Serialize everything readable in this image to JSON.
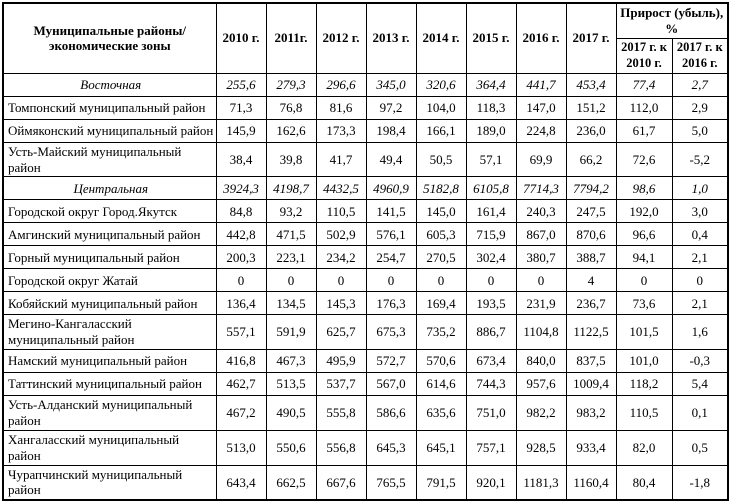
{
  "table": {
    "corner_header": "Муниципальные районы/\nэкономические зоны",
    "year_headers": [
      "2010 г.",
      "2011г.",
      "2012 г.",
      "2013 г.",
      "2014 г.",
      "2015 г.",
      "2016 г.",
      "2017 г."
    ],
    "growth_header": "Прирост (убыль),\n%",
    "growth_subheaders": [
      "2017 г. к\n2010 г.",
      "2017 г. к\n2016 г."
    ],
    "rows": [
      {
        "name": "Восточная",
        "type": "zone",
        "values": [
          "255,6",
          "279,3",
          "296,6",
          "345,0",
          "320,6",
          "364,4",
          "441,7",
          "453,4",
          "77,4",
          "2,7"
        ]
      },
      {
        "name": "Томпонский муниципальный район",
        "type": "district",
        "values": [
          "71,3",
          "76,8",
          "81,6",
          "97,2",
          "104,0",
          "118,3",
          "147,0",
          "151,2",
          "112,0",
          "2,9"
        ]
      },
      {
        "name": "Оймяконский муниципальный район",
        "type": "district",
        "values": [
          "145,9",
          "162,6",
          "173,3",
          "198,4",
          "166,1",
          "189,0",
          "224,8",
          "236,0",
          "61,7",
          "5,0"
        ]
      },
      {
        "name": "Усть-Майский муниципальный район",
        "type": "district",
        "values": [
          "38,4",
          "39,8",
          "41,7",
          "49,4",
          "50,5",
          "57,1",
          "69,9",
          "66,2",
          "72,6",
          "-5,2"
        ]
      },
      {
        "name": "Центральная",
        "type": "zone",
        "values": [
          "3924,3",
          "4198,7",
          "4432,5",
          "4960,9",
          "5182,8",
          "6105,8",
          "7714,3",
          "7794,2",
          "98,6",
          "1,0"
        ]
      },
      {
        "name": "Городской округ Город.Якутск",
        "type": "district",
        "values": [
          "84,8",
          "93,2",
          "110,5",
          "141,5",
          "145,0",
          "161,4",
          "240,3",
          "247,5",
          "192,0",
          "3,0"
        ]
      },
      {
        "name": "Амгинский муниципальный район",
        "type": "district",
        "values": [
          "442,8",
          "471,5",
          "502,9",
          "576,1",
          "605,3",
          "715,9",
          "867,0",
          "870,6",
          "96,6",
          "0,4"
        ]
      },
      {
        "name": "Горный муниципальный район",
        "type": "district",
        "values": [
          "200,3",
          "223,1",
          "234,2",
          "254,7",
          "270,5",
          "302,4",
          "380,7",
          "388,7",
          "94,1",
          "2,1"
        ]
      },
      {
        "name": "Городской округ Жатай",
        "type": "district",
        "values": [
          "0",
          "0",
          "0",
          "0",
          "0",
          "0",
          "0",
          "4",
          "0",
          "0"
        ]
      },
      {
        "name": "Кобяйский муниципальный район",
        "type": "district",
        "values": [
          "136,4",
          "134,5",
          "145,3",
          "176,3",
          "169,4",
          "193,5",
          "231,9",
          "236,7",
          "73,6",
          "2,1"
        ]
      },
      {
        "name": "Мегино-Кангаласский муниципальный район",
        "type": "district",
        "values": [
          "557,1",
          "591,9",
          "625,7",
          "675,3",
          "735,2",
          "886,7",
          "1104,8",
          "1122,5",
          "101,5",
          "1,6"
        ]
      },
      {
        "name": "Намский муниципальный район",
        "type": "district",
        "values": [
          "416,8",
          "467,3",
          "495,9",
          "572,7",
          "570,6",
          "673,4",
          "840,0",
          "837,5",
          "101,0",
          "-0,3"
        ]
      },
      {
        "name": "Таттинский муниципальный район",
        "type": "district",
        "values": [
          "462,7",
          "513,5",
          "537,7",
          "567,0",
          "614,6",
          "744,3",
          "957,6",
          "1009,4",
          "118,2",
          "5,4"
        ]
      },
      {
        "name": "Усть-Алданский муниципальный район",
        "type": "district",
        "values": [
          "467,2",
          "490,5",
          "555,8",
          "586,6",
          "635,6",
          "751,0",
          "982,2",
          "983,2",
          "110,5",
          "0,1"
        ]
      },
      {
        "name": "Хангаласский муниципальный район",
        "type": "district",
        "values": [
          "513,0",
          "550,6",
          "556,8",
          "645,3",
          "645,1",
          "757,1",
          "928,5",
          "933,4",
          "82,0",
          "0,5"
        ]
      },
      {
        "name": "Чурапчинский муниципальный район",
        "type": "district",
        "values": [
          "643,4",
          "662,5",
          "667,6",
          "765,5",
          "791,5",
          "920,1",
          "1181,3",
          "1160,4",
          "80,4",
          "-1,8"
        ]
      }
    ]
  },
  "colors": {
    "background": "#ffffff",
    "text": "#000000",
    "border": "#000000"
  }
}
